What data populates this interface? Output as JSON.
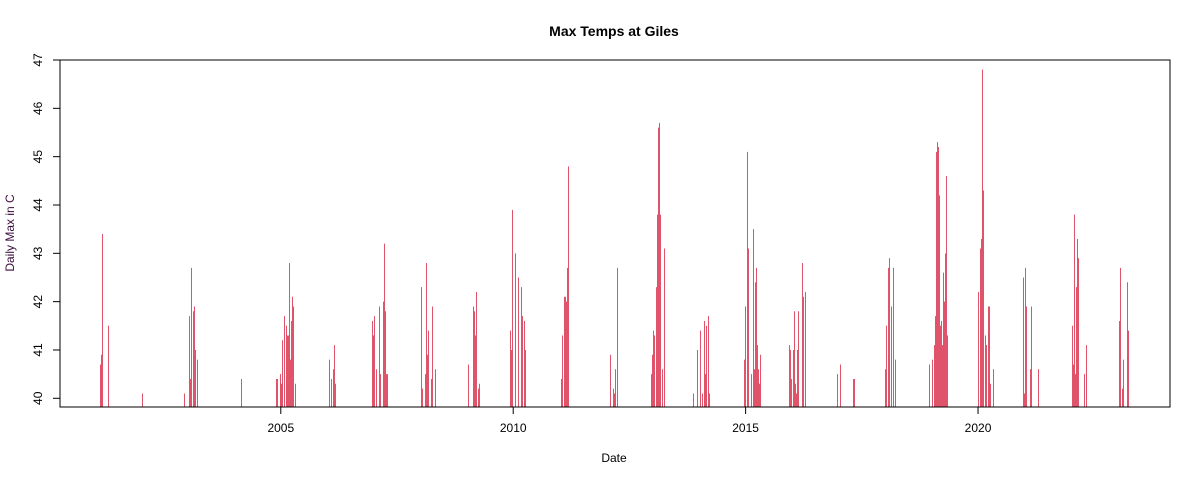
{
  "chart_data": {
    "type": "line",
    "style": "vertical-spikes",
    "title": "Max Temps at Giles",
    "xlabel": "Date",
    "ylabel": "Daily Max in C",
    "xlim": [
      2000.25,
      2024.13
    ],
    "ylim": [
      39.82,
      47.0
    ],
    "x_ticks": [
      2005,
      2010,
      2015,
      2020
    ],
    "x_tick_labels": [
      "2005",
      "2010",
      "2015",
      "2020"
    ],
    "y_ticks": [
      40,
      41,
      42,
      43,
      44,
      45,
      46,
      47
    ],
    "y_tick_labels": [
      "40",
      "41",
      "42",
      "43",
      "44",
      "45",
      "46",
      "47"
    ],
    "grid": false,
    "series_color": "#DF536B",
    "points": [
      [
        2001.12,
        40.7
      ],
      [
        2001.14,
        40.9
      ],
      [
        2001.16,
        43.4
      ],
      [
        2001.28,
        41.5
      ],
      [
        2002.01,
        40.1
      ],
      [
        2002.92,
        40.1
      ],
      [
        2003.03,
        41.7
      ],
      [
        2003.05,
        40.4
      ],
      [
        2003.07,
        42.7
      ],
      [
        2003.12,
        41.8
      ],
      [
        2003.14,
        41.9
      ],
      [
        2003.16,
        41.0
      ],
      [
        2003.2,
        40.8
      ],
      [
        2004.15,
        40.4
      ],
      [
        2004.9,
        40.4
      ],
      [
        2004.92,
        40.4
      ],
      [
        2004.99,
        40.5
      ],
      [
        2005.01,
        40.3
      ],
      [
        2005.03,
        41.2
      ],
      [
        2005.07,
        41.7
      ],
      [
        2005.12,
        41.5
      ],
      [
        2005.14,
        41.3
      ],
      [
        2005.16,
        41.3
      ],
      [
        2005.18,
        42.8
      ],
      [
        2005.2,
        40.8
      ],
      [
        2005.22,
        41.6
      ],
      [
        2005.25,
        42.1
      ],
      [
        2005.27,
        41.9
      ],
      [
        2005.31,
        40.3
      ],
      [
        2006.04,
        40.8
      ],
      [
        2006.09,
        40.4
      ],
      [
        2006.13,
        40.6
      ],
      [
        2006.15,
        41.1
      ],
      [
        2006.17,
        40.3
      ],
      [
        2006.97,
        41.6
      ],
      [
        2006.99,
        41.3
      ],
      [
        2007.01,
        41.7
      ],
      [
        2007.05,
        40.6
      ],
      [
        2007.12,
        41.9
      ],
      [
        2007.14,
        40.5
      ],
      [
        2007.2,
        42.0
      ],
      [
        2007.23,
        43.2
      ],
      [
        2007.25,
        41.8
      ],
      [
        2007.27,
        40.5
      ],
      [
        2007.29,
        40.5
      ],
      [
        2008.02,
        42.3
      ],
      [
        2008.04,
        40.2
      ],
      [
        2008.11,
        40.5
      ],
      [
        2008.13,
        42.8
      ],
      [
        2008.15,
        40.9
      ],
      [
        2008.17,
        41.4
      ],
      [
        2008.24,
        40.4
      ],
      [
        2008.26,
        41.9
      ],
      [
        2008.32,
        40.6
      ],
      [
        2009.03,
        40.7
      ],
      [
        2009.14,
        41.9
      ],
      [
        2009.16,
        41.8
      ],
      [
        2009.18,
        41.3
      ],
      [
        2009.2,
        42.2
      ],
      [
        2009.25,
        40.2
      ],
      [
        2009.27,
        40.3
      ],
      [
        2009.93,
        41.4
      ],
      [
        2009.96,
        41.0
      ],
      [
        2009.98,
        43.9
      ],
      [
        2010.04,
        43.0
      ],
      [
        2010.11,
        42.5
      ],
      [
        2010.17,
        42.3
      ],
      [
        2010.19,
        41.7
      ],
      [
        2010.24,
        41.6
      ],
      [
        2010.26,
        41.0
      ],
      [
        2011.03,
        40.4
      ],
      [
        2011.05,
        41.3
      ],
      [
        2011.1,
        42.1
      ],
      [
        2011.12,
        42.1
      ],
      [
        2011.14,
        42.0
      ],
      [
        2011.16,
        42.7
      ],
      [
        2011.18,
        44.8
      ],
      [
        2012.09,
        40.9
      ],
      [
        2012.15,
        40.2
      ],
      [
        2012.17,
        40.1
      ],
      [
        2012.19,
        40.6
      ],
      [
        2012.24,
        42.7
      ],
      [
        2012.97,
        40.5
      ],
      [
        2012.99,
        40.9
      ],
      [
        2013.01,
        41.4
      ],
      [
        2013.03,
        41.3
      ],
      [
        2013.07,
        42.3
      ],
      [
        2013.1,
        43.8
      ],
      [
        2013.12,
        45.6
      ],
      [
        2013.14,
        45.7
      ],
      [
        2013.16,
        43.8
      ],
      [
        2013.2,
        40.6
      ],
      [
        2013.25,
        43.1
      ],
      [
        2013.87,
        40.1
      ],
      [
        2013.96,
        41.0
      ],
      [
        2014.02,
        41.4
      ],
      [
        2014.06,
        40.1
      ],
      [
        2014.11,
        41.6
      ],
      [
        2014.13,
        40.5
      ],
      [
        2014.15,
        41.5
      ],
      [
        2014.19,
        41.7
      ],
      [
        2014.21,
        40.1
      ],
      [
        2014.97,
        40.8
      ],
      [
        2014.99,
        41.9
      ],
      [
        2015.03,
        45.1
      ],
      [
        2015.05,
        43.1
      ],
      [
        2015.12,
        40.5
      ],
      [
        2015.16,
        43.5
      ],
      [
        2015.18,
        40.6
      ],
      [
        2015.2,
        42.4
      ],
      [
        2015.23,
        42.7
      ],
      [
        2015.25,
        41.1
      ],
      [
        2015.27,
        40.6
      ],
      [
        2015.29,
        40.3
      ],
      [
        2015.31,
        40.9
      ],
      [
        2015.93,
        41.1
      ],
      [
        2015.96,
        41.0
      ],
      [
        2015.98,
        40.4
      ],
      [
        2016.02,
        41.0
      ],
      [
        2016.04,
        41.8
      ],
      [
        2016.06,
        40.3
      ],
      [
        2016.08,
        40.1
      ],
      [
        2016.11,
        41.0
      ],
      [
        2016.13,
        41.8
      ],
      [
        2016.21,
        42.8
      ],
      [
        2016.24,
        42.1
      ],
      [
        2016.28,
        42.2
      ],
      [
        2016.97,
        40.5
      ],
      [
        2017.03,
        40.7
      ],
      [
        2017.31,
        40.4
      ],
      [
        2017.33,
        40.4
      ],
      [
        2018.0,
        40.6
      ],
      [
        2018.02,
        41.5
      ],
      [
        2018.06,
        42.7
      ],
      [
        2018.09,
        42.9
      ],
      [
        2018.13,
        41.9
      ],
      [
        2018.17,
        42.7
      ],
      [
        2018.21,
        40.8
      ],
      [
        2018.95,
        40.7
      ],
      [
        2019.01,
        40.8
      ],
      [
        2019.05,
        41.1
      ],
      [
        2019.08,
        41.7
      ],
      [
        2019.1,
        45.1
      ],
      [
        2019.12,
        45.3
      ],
      [
        2019.14,
        45.2
      ],
      [
        2019.16,
        44.2
      ],
      [
        2019.18,
        41.5
      ],
      [
        2019.2,
        41.6
      ],
      [
        2019.23,
        41.1
      ],
      [
        2019.25,
        42.6
      ],
      [
        2019.27,
        42.0
      ],
      [
        2019.29,
        43.0
      ],
      [
        2019.31,
        44.6
      ],
      [
        2019.33,
        41.3
      ],
      [
        2020.0,
        42.2
      ],
      [
        2020.04,
        43.1
      ],
      [
        2020.06,
        43.3
      ],
      [
        2020.09,
        46.8
      ],
      [
        2020.11,
        44.3
      ],
      [
        2020.15,
        41.3
      ],
      [
        2020.17,
        41.1
      ],
      [
        2020.21,
        41.9
      ],
      [
        2020.24,
        41.9
      ],
      [
        2020.26,
        40.3
      ],
      [
        2020.32,
        40.6
      ],
      [
        2020.97,
        42.5
      ],
      [
        2020.99,
        40.1
      ],
      [
        2021.01,
        42.7
      ],
      [
        2021.03,
        41.9
      ],
      [
        2021.12,
        40.6
      ],
      [
        2021.14,
        41.9
      ],
      [
        2021.29,
        40.6
      ],
      [
        2022.02,
        41.5
      ],
      [
        2022.04,
        40.7
      ],
      [
        2022.06,
        43.8
      ],
      [
        2022.09,
        40.5
      ],
      [
        2022.11,
        42.3
      ],
      [
        2022.13,
        43.3
      ],
      [
        2022.15,
        42.9
      ],
      [
        2022.28,
        40.5
      ],
      [
        2022.32,
        41.1
      ],
      [
        2023.03,
        41.6
      ],
      [
        2023.05,
        42.7
      ],
      [
        2023.1,
        40.2
      ],
      [
        2023.12,
        40.8
      ],
      [
        2023.2,
        42.4
      ],
      [
        2023.23,
        41.4
      ]
    ]
  }
}
